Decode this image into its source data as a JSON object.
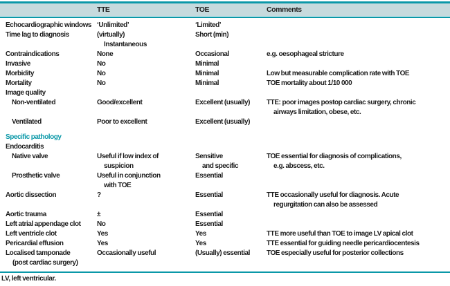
{
  "header": {
    "col_label": "",
    "col_tte": "TTE",
    "col_toe": "TOE",
    "col_comments": "Comments"
  },
  "rows": [
    {
      "label": "Echocardiographic windows",
      "tte": "‘Unlimited’",
      "toe": "‘Limited’",
      "comments": ""
    },
    {
      "label": "Time lag to diagnosis",
      "tte": "(virtually)\nInstantaneous",
      "toe": "Short (min)",
      "comments": ""
    },
    {
      "label": "Contraindications",
      "tte": "None",
      "toe": "Occasional",
      "comments": "e.g. oesophageal stricture"
    },
    {
      "label": "Invasive",
      "tte": "No",
      "toe": "Minimal",
      "comments": ""
    },
    {
      "label": "Morbidity",
      "tte": "No",
      "toe": "Minimal",
      "comments": "Low but measurable complication rate with TOE"
    },
    {
      "label": "Mortality",
      "tte": "No",
      "toe": "Minimal",
      "comments": "TOE mortality about 1/10 000"
    },
    {
      "label": "Image quality",
      "tte": "",
      "toe": "",
      "comments": ""
    },
    {
      "label": "Non-ventilated",
      "indent": true,
      "tte": "Good/excellent",
      "toe": "Excellent (usually)",
      "comments": "TTE: poor images postop cardiac surgery, chronic\nairways limitation, obese, etc."
    },
    {
      "label": "Ventilated",
      "indent": true,
      "tte": "Poor to excellent",
      "toe": "Excellent (usually)",
      "comments": ""
    },
    {
      "type": "spacer"
    },
    {
      "label": "Specific pathology",
      "type": "section",
      "tte": "",
      "toe": "",
      "comments": ""
    },
    {
      "label": "Endocarditis",
      "tte": "",
      "toe": "",
      "comments": ""
    },
    {
      "label": "Native valve",
      "indent": true,
      "tte": "Useful if low index of\nsuspicion",
      "toe": "Sensitive\nand specific",
      "comments": "TOE essential for diagnosis of complications,\ne.g. abscess, etc."
    },
    {
      "label": "Prosthetic valve",
      "indent": true,
      "tte": "Useful in conjunction\nwith TOE",
      "toe": "Essential",
      "comments": ""
    },
    {
      "label": "Aortic dissection",
      "tte": "?",
      "toe": "Essential",
      "comments": "TTE occasionally useful for diagnosis. Acute\nregurgitation can also be assessed"
    },
    {
      "label": "Aortic trauma",
      "tte": "±",
      "toe": "Essential",
      "comments": ""
    },
    {
      "label": "Left atrial appendage clot",
      "tte": "No",
      "toe": "Essential",
      "comments": ""
    },
    {
      "label": "Left ventricle clot",
      "tte": "Yes",
      "toe": "Yes",
      "comments": "TTE more useful than TOE to image LV apical clot"
    },
    {
      "label": "Pericardial effusion",
      "tte": "Yes",
      "toe": "Yes",
      "comments": "TTE essential for guiding needle pericardiocentesis"
    },
    {
      "label": "Localised tamponade\n(post cardiac surgery)",
      "tte": "Occasionally useful",
      "toe": "(Usually) essential",
      "comments": "TOE especially useful for posterior collections"
    }
  ],
  "footnote": "LV, left ventricular.",
  "colors": {
    "accent_teal": "#0a98a8",
    "header_band": "#c6dadd",
    "text": "#1c1c1c"
  }
}
